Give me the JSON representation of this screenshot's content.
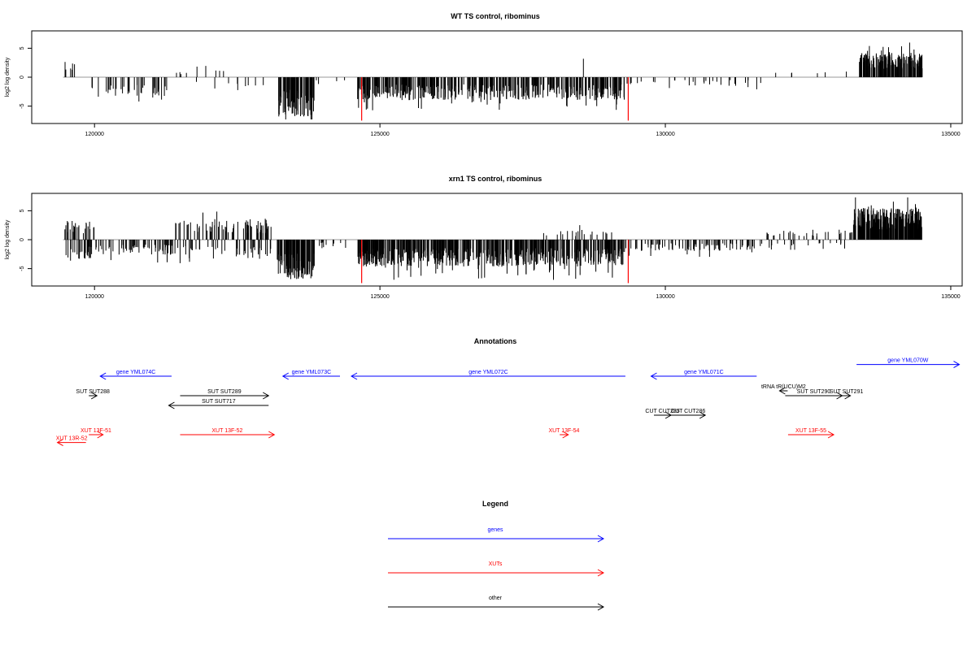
{
  "chart_data": [
    {
      "type": "bar",
      "title": "WT TS control, ribominus",
      "xlabel": "",
      "ylabel": "log2 log density",
      "xlim": [
        118900,
        135200
      ],
      "ylim": [
        -8,
        8
      ],
      "xticks": [
        120000,
        125000,
        130000,
        135000
      ],
      "yticks": [
        -5,
        0,
        5
      ],
      "grid": false,
      "baseline_color": "#999999",
      "bar_color": "#000000",
      "highlight_color": "#ff0000",
      "highlight_markers": [
        {
          "x": 124680,
          "y": -7.5
        },
        {
          "x": 129350,
          "y": -7.5
        }
      ],
      "segments": [
        {
          "from": 119450,
          "to": 119650,
          "amp": 2.6,
          "density": 6,
          "sign": "pos"
        },
        {
          "from": 119950,
          "to": 121300,
          "amp": 3.2,
          "density": 40,
          "sign": "neg"
        },
        {
          "from": 121400,
          "to": 121700,
          "amp": 1.0,
          "density": 4,
          "sign": "pos"
        },
        {
          "from": 121700,
          "to": 122400,
          "amp": 1.8,
          "density": 8,
          "sign": "mix"
        },
        {
          "from": 122400,
          "to": 123200,
          "amp": 1.6,
          "density": 6,
          "sign": "neg"
        },
        {
          "from": 123200,
          "to": 123850,
          "amp": 6.2,
          "density": 80,
          "sign": "neg"
        },
        {
          "from": 123850,
          "to": 124400,
          "amp": 1.2,
          "density": 4,
          "sign": "neg"
        },
        {
          "from": 124600,
          "to": 129300,
          "amp": 3.6,
          "density": 420,
          "sign": "neg"
        },
        {
          "from": 128550,
          "to": 128600,
          "amp": 3.0,
          "density": 1,
          "sign": "pos"
        },
        {
          "from": 129300,
          "to": 131800,
          "amp": 1.4,
          "density": 30,
          "sign": "neg"
        },
        {
          "from": 131800,
          "to": 133300,
          "amp": 1.0,
          "density": 6,
          "sign": "pos"
        },
        {
          "from": 133400,
          "to": 134500,
          "amp": 3.8,
          "density": 170,
          "sign": "pos"
        }
      ]
    },
    {
      "type": "bar",
      "title": "xrn1 TS control, ribominus",
      "xlabel": "",
      "ylabel": "log2 log density",
      "xlim": [
        118900,
        135200
      ],
      "ylim": [
        -8,
        8
      ],
      "xticks": [
        120000,
        125000,
        130000,
        135000
      ],
      "yticks": [
        -5,
        0,
        5
      ],
      "grid": false,
      "baseline_color": "#999999",
      "bar_color": "#000000",
      "highlight_color": "#ff0000",
      "highlight_markers": [
        {
          "x": 124680,
          "y": -7.5
        },
        {
          "x": 129350,
          "y": -7.5
        }
      ],
      "segments": [
        {
          "from": 119450,
          "to": 120000,
          "amp": 3.0,
          "density": 50,
          "sign": "mix"
        },
        {
          "from": 120000,
          "to": 121400,
          "amp": 2.4,
          "density": 60,
          "sign": "neg"
        },
        {
          "from": 121400,
          "to": 123100,
          "amp": 3.0,
          "density": 120,
          "sign": "mix"
        },
        {
          "from": 123200,
          "to": 123850,
          "amp": 6.2,
          "density": 90,
          "sign": "neg"
        },
        {
          "from": 123850,
          "to": 124400,
          "amp": 1.4,
          "density": 10,
          "sign": "neg"
        },
        {
          "from": 124600,
          "to": 129300,
          "amp": 4.2,
          "density": 520,
          "sign": "neg"
        },
        {
          "from": 127800,
          "to": 129300,
          "amp": 1.6,
          "density": 20,
          "sign": "pos"
        },
        {
          "from": 129300,
          "to": 131700,
          "amp": 1.8,
          "density": 90,
          "sign": "neg"
        },
        {
          "from": 131700,
          "to": 133300,
          "amp": 1.6,
          "density": 50,
          "sign": "mix"
        },
        {
          "from": 133300,
          "to": 134500,
          "amp": 5.0,
          "density": 230,
          "sign": "pos"
        }
      ]
    }
  ],
  "annotations": {
    "title": "Annotations",
    "xlim": [
      118900,
      135200
    ],
    "features": [
      {
        "label": "gene YML074C",
        "start": 120100,
        "end": 121350,
        "strand": "-",
        "type": "gene",
        "row": 0
      },
      {
        "label": "gene YML073C",
        "start": 123300,
        "end": 124300,
        "strand": "-",
        "type": "gene",
        "row": 0
      },
      {
        "label": "gene YML072C",
        "start": 124500,
        "end": 129300,
        "strand": "-",
        "type": "gene",
        "row": 0
      },
      {
        "label": "gene YML071C",
        "start": 129750,
        "end": 131600,
        "strand": "-",
        "type": "gene",
        "row": 0
      },
      {
        "label": "gene YML070W",
        "start": 133350,
        "end": 135150,
        "strand": "+",
        "type": "gene",
        "row": -0.6
      },
      {
        "label": "SUT SUT288",
        "start": 119900,
        "end": 119950,
        "strand": "+",
        "type": "other",
        "row": 1
      },
      {
        "label": "SUT SUT289",
        "start": 121500,
        "end": 123050,
        "strand": "+",
        "type": "other",
        "row": 1
      },
      {
        "label": "SUT SUT717",
        "start": 121300,
        "end": 123050,
        "strand": "-",
        "type": "other",
        "row": 1.5
      },
      {
        "label": "tRNA tR(UCU)M2",
        "start": 132000,
        "end": 132100,
        "strand": "-",
        "type": "other",
        "row": 0.75
      },
      {
        "label": "SUT SUT290",
        "start": 132100,
        "end": 133100,
        "strand": "+",
        "type": "other",
        "row": 1
      },
      {
        "label": "SUT SUT291",
        "start": 133100,
        "end": 133200,
        "strand": "+",
        "type": "other",
        "row": 1
      },
      {
        "label": "CUT CUT285",
        "start": 129800,
        "end": 130100,
        "strand": "+",
        "type": "other",
        "row": 2
      },
      {
        "label": "CUT CUT286",
        "start": 130100,
        "end": 130700,
        "strand": "+",
        "type": "other",
        "row": 2
      },
      {
        "label": "XUT 13F-51",
        "start": 119900,
        "end": 120150,
        "strand": "+",
        "type": "xut",
        "row": 3
      },
      {
        "label": "XUT 13R-52",
        "start": 119350,
        "end": 119850,
        "strand": "-",
        "type": "xut",
        "row": 3.4
      },
      {
        "label": "XUT 13F-52",
        "start": 121500,
        "end": 123150,
        "strand": "+",
        "type": "xut",
        "row": 3
      },
      {
        "label": "XUT 13F-54",
        "start": 128150,
        "end": 128300,
        "strand": "+",
        "type": "xut",
        "row": 3
      },
      {
        "label": "XUT 13F-55",
        "start": 132150,
        "end": 132950,
        "strand": "+",
        "type": "xut",
        "row": 3
      }
    ]
  },
  "legend": {
    "title": "Legend",
    "items": [
      {
        "label": "genes",
        "type": "gene"
      },
      {
        "label": "XUTs",
        "type": "xut"
      },
      {
        "label": "other",
        "type": "other"
      }
    ]
  },
  "colors": {
    "gene": "#0000ff",
    "xut": "#ff0000",
    "other": "#000000",
    "baseline": "#999999"
  }
}
